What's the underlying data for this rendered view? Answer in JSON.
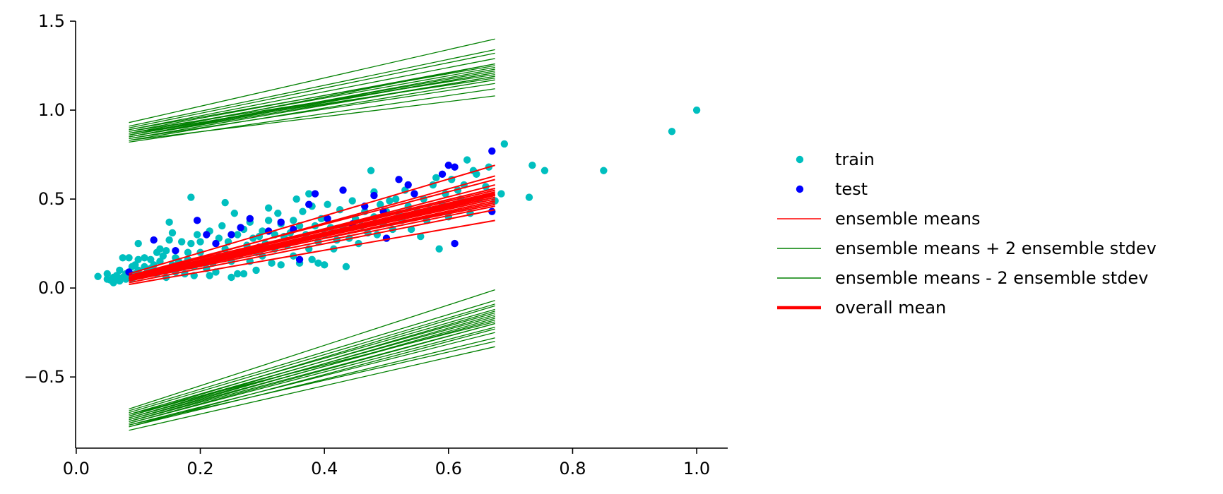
{
  "chart_data": {
    "type": "scatter",
    "title": "",
    "xlabel": "",
    "ylabel": "",
    "xlim": [
      -0.001,
      1.05
    ],
    "ylim": [
      -0.9,
      1.5
    ],
    "xticks": [
      0.0,
      0.2,
      0.4,
      0.6,
      0.8,
      1.0
    ],
    "xtick_labels": [
      "0.0",
      "0.2",
      "0.4",
      "0.6",
      "0.8",
      "1.0"
    ],
    "yticks": [
      -0.5,
      0.0,
      0.5,
      1.0,
      1.5
    ],
    "ytick_labels": [
      "−0.5",
      "0.0",
      "0.5",
      "1.0",
      "1.5"
    ],
    "legend": {
      "placement": "center-right, outside axes",
      "entries": [
        {
          "label": "train",
          "kind": "marker",
          "color": "#00bfbf"
        },
        {
          "label": "test",
          "kind": "marker",
          "color": "#0000ff"
        },
        {
          "label": "ensemble means",
          "kind": "line",
          "color": "#ff0000",
          "weight": "thin"
        },
        {
          "label": "ensemble means + 2 ensemble stdev",
          "kind": "line",
          "color": "#008000",
          "weight": "thin"
        },
        {
          "label": "ensemble means - 2 ensemble stdev",
          "kind": "line",
          "color": "#008000",
          "weight": "thin"
        },
        {
          "label": "overall mean",
          "kind": "line",
          "color": "#ff0000",
          "weight": "thick"
        }
      ]
    },
    "line_x_range": [
      0.085,
      0.675
    ],
    "series": [
      {
        "name": "train",
        "color": "#00bfbf",
        "points": [
          [
            0.035,
            0.065
          ],
          [
            0.05,
            0.05
          ],
          [
            0.05,
            0.08
          ],
          [
            0.055,
            0.045
          ],
          [
            0.06,
            0.06
          ],
          [
            0.06,
            0.03
          ],
          [
            0.065,
            0.055
          ],
          [
            0.065,
            0.07
          ],
          [
            0.07,
            0.04
          ],
          [
            0.07,
            0.1
          ],
          [
            0.075,
            0.06
          ],
          [
            0.075,
            0.17
          ],
          [
            0.08,
            0.05
          ],
          [
            0.08,
            0.08
          ],
          [
            0.085,
            0.17
          ],
          [
            0.085,
            0.06
          ],
          [
            0.09,
            0.12
          ],
          [
            0.09,
            0.05
          ],
          [
            0.095,
            0.13
          ],
          [
            0.095,
            0.08
          ],
          [
            0.1,
            0.25
          ],
          [
            0.1,
            0.16
          ],
          [
            0.1,
            0.1
          ],
          [
            0.105,
            0.07
          ],
          [
            0.11,
            0.12
          ],
          [
            0.11,
            0.17
          ],
          [
            0.115,
            0.09
          ],
          [
            0.12,
            0.16
          ],
          [
            0.12,
            0.11
          ],
          [
            0.125,
            0.13
          ],
          [
            0.13,
            0.08
          ],
          [
            0.13,
            0.2
          ],
          [
            0.135,
            0.22
          ],
          [
            0.135,
            0.15
          ],
          [
            0.14,
            0.1
          ],
          [
            0.14,
            0.18
          ],
          [
            0.145,
            0.21
          ],
          [
            0.145,
            0.06
          ],
          [
            0.15,
            0.37
          ],
          [
            0.15,
            0.27
          ],
          [
            0.155,
            0.31
          ],
          [
            0.155,
            0.13
          ],
          [
            0.16,
            0.09
          ],
          [
            0.16,
            0.17
          ],
          [
            0.165,
            0.15
          ],
          [
            0.17,
            0.12
          ],
          [
            0.17,
            0.26
          ],
          [
            0.175,
            0.08
          ],
          [
            0.18,
            0.2
          ],
          [
            0.18,
            0.16
          ],
          [
            0.185,
            0.51
          ],
          [
            0.185,
            0.25
          ],
          [
            0.19,
            0.07
          ],
          [
            0.19,
            0.12
          ],
          [
            0.195,
            0.3
          ],
          [
            0.2,
            0.26
          ],
          [
            0.2,
            0.2
          ],
          [
            0.205,
            0.15
          ],
          [
            0.21,
            0.11
          ],
          [
            0.215,
            0.32
          ],
          [
            0.215,
            0.07
          ],
          [
            0.22,
            0.14
          ],
          [
            0.225,
            0.09
          ],
          [
            0.23,
            0.28
          ],
          [
            0.23,
            0.18
          ],
          [
            0.235,
            0.35
          ],
          [
            0.24,
            0.22
          ],
          [
            0.24,
            0.48
          ],
          [
            0.245,
            0.26
          ],
          [
            0.25,
            0.15
          ],
          [
            0.25,
            0.06
          ],
          [
            0.255,
            0.42
          ],
          [
            0.26,
            0.3
          ],
          [
            0.26,
            0.08
          ],
          [
            0.265,
            0.19
          ],
          [
            0.27,
            0.33
          ],
          [
            0.27,
            0.08
          ],
          [
            0.275,
            0.24
          ],
          [
            0.28,
            0.37
          ],
          [
            0.28,
            0.15
          ],
          [
            0.285,
            0.28
          ],
          [
            0.29,
            0.2
          ],
          [
            0.29,
            0.1
          ],
          [
            0.295,
            0.29
          ],
          [
            0.3,
            0.32
          ],
          [
            0.3,
            0.18
          ],
          [
            0.305,
            0.25
          ],
          [
            0.31,
            0.45
          ],
          [
            0.31,
            0.38
          ],
          [
            0.315,
            0.14
          ],
          [
            0.32,
            0.22
          ],
          [
            0.32,
            0.3
          ],
          [
            0.325,
            0.42
          ],
          [
            0.33,
            0.36
          ],
          [
            0.33,
            0.13
          ],
          [
            0.335,
            0.29
          ],
          [
            0.34,
            0.24
          ],
          [
            0.345,
            0.31
          ],
          [
            0.35,
            0.38
          ],
          [
            0.35,
            0.18
          ],
          [
            0.355,
            0.5
          ],
          [
            0.36,
            0.35
          ],
          [
            0.36,
            0.14
          ],
          [
            0.365,
            0.43
          ],
          [
            0.37,
            0.3
          ],
          [
            0.375,
            0.22
          ],
          [
            0.375,
            0.53
          ],
          [
            0.38,
            0.46
          ],
          [
            0.38,
            0.16
          ],
          [
            0.385,
            0.35
          ],
          [
            0.39,
            0.26
          ],
          [
            0.39,
            0.14
          ],
          [
            0.395,
            0.39
          ],
          [
            0.4,
            0.3
          ],
          [
            0.4,
            0.13
          ],
          [
            0.405,
            0.47
          ],
          [
            0.41,
            0.34
          ],
          [
            0.415,
            0.22
          ],
          [
            0.42,
            0.27
          ],
          [
            0.425,
            0.44
          ],
          [
            0.43,
            0.34
          ],
          [
            0.435,
            0.12
          ],
          [
            0.44,
            0.28
          ],
          [
            0.445,
            0.49
          ],
          [
            0.45,
            0.39
          ],
          [
            0.455,
            0.25
          ],
          [
            0.46,
            0.35
          ],
          [
            0.465,
            0.43
          ],
          [
            0.47,
            0.31
          ],
          [
            0.475,
            0.66
          ],
          [
            0.48,
            0.54
          ],
          [
            0.48,
            0.4
          ],
          [
            0.485,
            0.3
          ],
          [
            0.49,
            0.47
          ],
          [
            0.495,
            0.36
          ],
          [
            0.5,
            0.43
          ],
          [
            0.505,
            0.49
          ],
          [
            0.51,
            0.33
          ],
          [
            0.515,
            0.5
          ],
          [
            0.52,
            0.42
          ],
          [
            0.525,
            0.38
          ],
          [
            0.53,
            0.55
          ],
          [
            0.535,
            0.46
          ],
          [
            0.54,
            0.33
          ],
          [
            0.545,
            0.53
          ],
          [
            0.55,
            0.43
          ],
          [
            0.555,
            0.29
          ],
          [
            0.56,
            0.5
          ],
          [
            0.565,
            0.38
          ],
          [
            0.57,
            0.44
          ],
          [
            0.575,
            0.58
          ],
          [
            0.58,
            0.62
          ],
          [
            0.585,
            0.22
          ],
          [
            0.59,
            0.47
          ],
          [
            0.595,
            0.53
          ],
          [
            0.6,
            0.4
          ],
          [
            0.605,
            0.61
          ],
          [
            0.61,
            0.47
          ],
          [
            0.615,
            0.55
          ],
          [
            0.62,
            0.5
          ],
          [
            0.625,
            0.58
          ],
          [
            0.63,
            0.72
          ],
          [
            0.635,
            0.42
          ],
          [
            0.64,
            0.66
          ],
          [
            0.645,
            0.64
          ],
          [
            0.65,
            0.5
          ],
          [
            0.66,
            0.57
          ],
          [
            0.665,
            0.68
          ],
          [
            0.675,
            0.49
          ],
          [
            0.685,
            0.53
          ],
          [
            0.69,
            0.81
          ],
          [
            0.73,
            0.51
          ],
          [
            0.735,
            0.69
          ],
          [
            0.755,
            0.66
          ],
          [
            0.85,
            0.66
          ],
          [
            0.96,
            0.88
          ],
          [
            1.0,
            1.0
          ]
        ]
      },
      {
        "name": "test",
        "color": "#0000ff",
        "points": [
          [
            0.085,
            0.09
          ],
          [
            0.125,
            0.27
          ],
          [
            0.16,
            0.21
          ],
          [
            0.195,
            0.38
          ],
          [
            0.21,
            0.3
          ],
          [
            0.225,
            0.25
          ],
          [
            0.25,
            0.3
          ],
          [
            0.265,
            0.34
          ],
          [
            0.28,
            0.39
          ],
          [
            0.295,
            0.23
          ],
          [
            0.31,
            0.32
          ],
          [
            0.33,
            0.37
          ],
          [
            0.35,
            0.33
          ],
          [
            0.36,
            0.16
          ],
          [
            0.375,
            0.47
          ],
          [
            0.385,
            0.53
          ],
          [
            0.405,
            0.39
          ],
          [
            0.43,
            0.55
          ],
          [
            0.445,
            0.36
          ],
          [
            0.465,
            0.46
          ],
          [
            0.48,
            0.52
          ],
          [
            0.495,
            0.43
          ],
          [
            0.5,
            0.28
          ],
          [
            0.52,
            0.61
          ],
          [
            0.535,
            0.58
          ],
          [
            0.545,
            0.53
          ],
          [
            0.59,
            0.64
          ],
          [
            0.6,
            0.69
          ],
          [
            0.61,
            0.25
          ],
          [
            0.61,
            0.68
          ],
          [
            0.67,
            0.43
          ],
          [
            0.67,
            0.77
          ]
        ]
      },
      {
        "name": "ensemble means",
        "color": "#ff0000",
        "lines": [
          [
            0.08,
            0.69
          ],
          [
            0.07,
            0.61
          ],
          [
            0.06,
            0.63
          ],
          [
            0.05,
            0.58
          ],
          [
            0.07,
            0.56
          ],
          [
            0.06,
            0.55
          ],
          [
            0.04,
            0.52
          ],
          [
            0.05,
            0.54
          ],
          [
            0.06,
            0.52
          ],
          [
            0.05,
            0.5
          ],
          [
            0.04,
            0.49
          ],
          [
            0.06,
            0.47
          ],
          [
            0.05,
            0.53
          ],
          [
            0.03,
            0.44
          ],
          [
            0.04,
            0.46
          ],
          [
            0.02,
            0.38
          ],
          [
            0.07,
            0.51
          ],
          [
            0.05,
            0.48
          ],
          [
            0.04,
            0.51
          ],
          [
            0.06,
            0.56
          ]
        ]
      },
      {
        "name": "ensemble means + 2 ensemble stdev",
        "color": "#008000",
        "lines": [
          [
            0.93,
            1.4
          ],
          [
            0.91,
            1.34
          ],
          [
            0.9,
            1.32
          ],
          [
            0.89,
            1.29
          ],
          [
            0.88,
            1.26
          ],
          [
            0.87,
            1.24
          ],
          [
            0.86,
            1.22
          ],
          [
            0.85,
            1.21
          ],
          [
            0.84,
            1.19
          ],
          [
            0.83,
            1.17
          ],
          [
            0.82,
            1.12
          ],
          [
            0.83,
            1.08
          ],
          [
            0.86,
            1.26
          ],
          [
            0.88,
            1.2
          ],
          [
            0.85,
            1.23
          ],
          [
            0.84,
            1.15
          ],
          [
            0.87,
            1.18
          ],
          [
            0.89,
            1.25
          ],
          [
            0.86,
            1.21
          ],
          [
            0.85,
            1.19
          ]
        ]
      },
      {
        "name": "ensemble means - 2 ensemble stdev",
        "color": "#008000",
        "lines": [
          [
            -0.68,
            -0.01
          ],
          [
            -0.69,
            -0.07
          ],
          [
            -0.7,
            -0.09
          ],
          [
            -0.71,
            -0.12
          ],
          [
            -0.72,
            -0.14
          ],
          [
            -0.73,
            -0.16
          ],
          [
            -0.74,
            -0.18
          ],
          [
            -0.75,
            -0.2
          ],
          [
            -0.76,
            -0.22
          ],
          [
            -0.77,
            -0.25
          ],
          [
            -0.78,
            -0.28
          ],
          [
            -0.8,
            -0.33
          ],
          [
            -0.72,
            -0.1
          ],
          [
            -0.75,
            -0.17
          ],
          [
            -0.76,
            -0.2
          ],
          [
            -0.74,
            -0.15
          ],
          [
            -0.78,
            -0.23
          ],
          [
            -0.77,
            -0.3
          ],
          [
            -0.73,
            -0.13
          ],
          [
            -0.71,
            -0.19
          ]
        ]
      },
      {
        "name": "overall mean",
        "color": "#ff0000",
        "line": [
          0.05,
          0.53
        ]
      }
    ]
  }
}
